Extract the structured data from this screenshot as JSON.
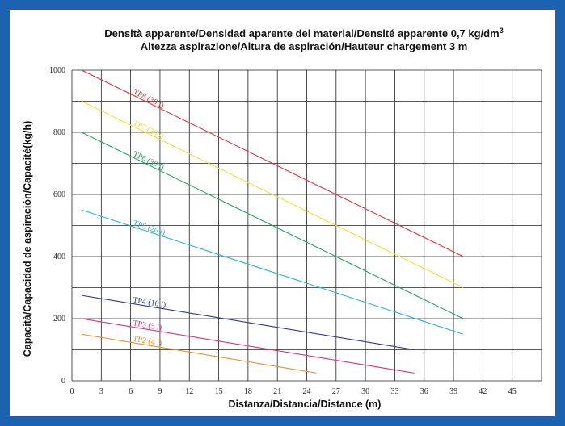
{
  "chart_data": {
    "type": "line",
    "title": "Densità apparente/Densidad aparente del material/Densité apparente 0,7 kg/dm",
    "title_superscript": "3",
    "subtitle": "Altezza aspirazione/Altura de aspiración/Hauteur chargement 3 m",
    "xlabel": "Distanza/Distancia/Distance (m)",
    "ylabel": "Capacità/Capacidad de aspiración/Capacité(kg/h)",
    "xlim": [
      0,
      48
    ],
    "ylim": [
      0,
      1000
    ],
    "x_ticks": [
      0,
      3,
      6,
      9,
      12,
      15,
      18,
      21,
      24,
      27,
      30,
      33,
      36,
      39,
      42,
      45
    ],
    "y_ticks": [
      0,
      200,
      400,
      600,
      800,
      1000
    ],
    "grid": true,
    "series": [
      {
        "name": "TP8 (30 l)",
        "color": "#e0333a",
        "x": [
          1,
          40
        ],
        "y": [
          1000,
          400
        ]
      },
      {
        "name": "TP7 (30 l)",
        "color": "#f2e33c",
        "x": [
          1,
          40
        ],
        "y": [
          900,
          300
        ]
      },
      {
        "name": "TP6 (30 l)",
        "color": "#1fa85a",
        "x": [
          1,
          40
        ],
        "y": [
          800,
          200
        ]
      },
      {
        "name": "TP5 (20 l)",
        "color": "#26b6d8",
        "x": [
          1,
          40
        ],
        "y": [
          550,
          150
        ]
      },
      {
        "name": "TP4 (10 l)",
        "color": "#2e3a8f",
        "x": [
          1,
          35
        ],
        "y": [
          275,
          100
        ]
      },
      {
        "name": "TP3 (5 l)",
        "color": "#e0307a",
        "x": [
          1,
          35
        ],
        "y": [
          200,
          25
        ]
      },
      {
        "name": "TP2 (4 l)",
        "color": "#f0902a",
        "x": [
          1,
          25
        ],
        "y": [
          150,
          25
        ]
      }
    ]
  },
  "colors": {
    "frame": "#1b63b0",
    "panel": "#ffffff",
    "grid": "#222222"
  }
}
